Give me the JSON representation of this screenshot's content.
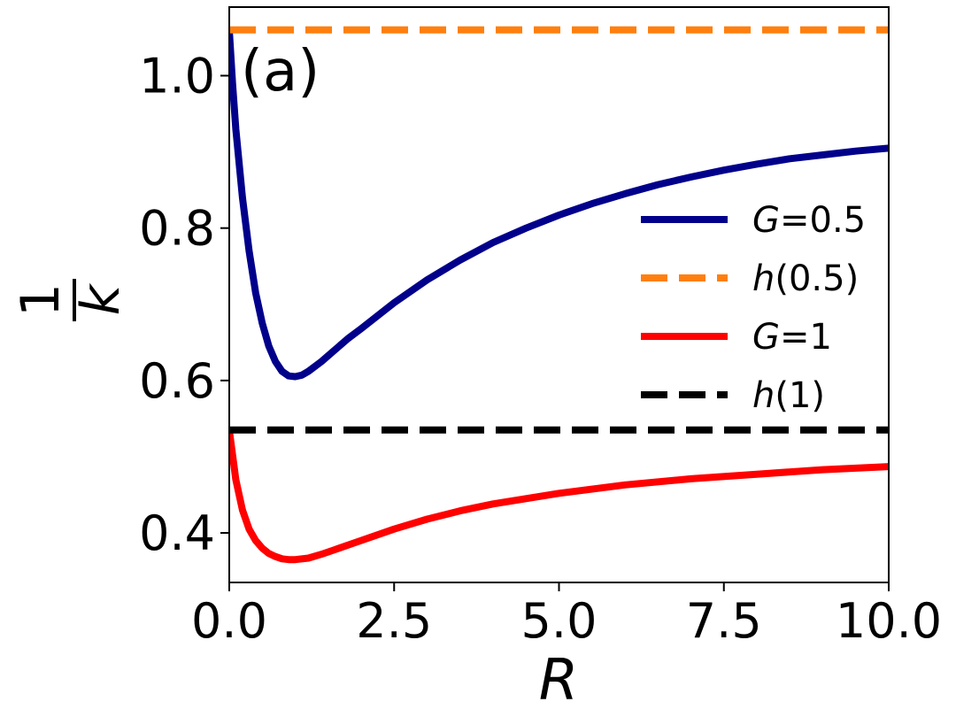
{
  "chart_data": {
    "type": "line",
    "panel_label": "(a)",
    "xlabel": "R",
    "ylabel": {
      "numerator": "1",
      "denominator": "k"
    },
    "xlim": [
      0,
      10
    ],
    "ylim": [
      0.335,
      1.09
    ],
    "xticks": [
      0.0,
      2.5,
      5.0,
      7.5,
      10.0
    ],
    "xtick_labels": [
      "0.0",
      "2.5",
      "5.0",
      "7.5",
      "10.0"
    ],
    "yticks": [
      0.4,
      0.6,
      0.8,
      1.0
    ],
    "ytick_labels": [
      "0.4",
      "0.6",
      "0.8",
      "1.0"
    ],
    "legend_position": "center-right",
    "series": [
      {
        "name": "G=0.5",
        "legend": {
          "var": "G",
          "rest": "=0.5"
        },
        "color": "#00008b",
        "style": "solid",
        "x": [
          0.0,
          0.05,
          0.1,
          0.2,
          0.3,
          0.4,
          0.5,
          0.6,
          0.7,
          0.8,
          0.9,
          1.0,
          1.1,
          1.2,
          1.4,
          1.6,
          1.8,
          2.0,
          2.5,
          3.0,
          3.5,
          4.0,
          4.5,
          5.0,
          5.5,
          6.0,
          6.5,
          7.0,
          7.5,
          8.0,
          8.5,
          9.0,
          9.5,
          10.0
        ],
        "y": [
          1.06,
          0.99,
          0.93,
          0.84,
          0.77,
          0.715,
          0.675,
          0.645,
          0.625,
          0.612,
          0.606,
          0.605,
          0.607,
          0.612,
          0.625,
          0.64,
          0.655,
          0.668,
          0.702,
          0.732,
          0.758,
          0.781,
          0.8,
          0.817,
          0.832,
          0.845,
          0.857,
          0.867,
          0.876,
          0.884,
          0.891,
          0.896,
          0.901,
          0.905
        ]
      },
      {
        "name": "h(0.5)",
        "legend": {
          "var": "h",
          "rest": "(0.5)"
        },
        "color": "#ff7f0e",
        "style": "dashed",
        "x": [
          0.0,
          10.0
        ],
        "y": [
          1.06,
          1.06
        ]
      },
      {
        "name": "G=1",
        "legend": {
          "var": "G",
          "rest": "=1"
        },
        "color": "#ff0000",
        "style": "solid",
        "x": [
          0.0,
          0.1,
          0.2,
          0.3,
          0.4,
          0.5,
          0.6,
          0.7,
          0.8,
          0.9,
          1.0,
          1.2,
          1.4,
          1.6,
          2.0,
          2.5,
          3.0,
          3.5,
          4.0,
          5.0,
          6.0,
          7.0,
          8.0,
          9.0,
          10.0
        ],
        "y": [
          0.535,
          0.47,
          0.43,
          0.405,
          0.39,
          0.38,
          0.373,
          0.369,
          0.366,
          0.365,
          0.365,
          0.367,
          0.372,
          0.378,
          0.39,
          0.405,
          0.418,
          0.429,
          0.438,
          0.452,
          0.463,
          0.471,
          0.477,
          0.483,
          0.487
        ]
      },
      {
        "name": "h(1)",
        "legend": {
          "var": "h",
          "rest": "(1)"
        },
        "color": "#000000",
        "style": "dashed",
        "x": [
          0.0,
          10.0
        ],
        "y": [
          0.535,
          0.535
        ]
      }
    ]
  }
}
